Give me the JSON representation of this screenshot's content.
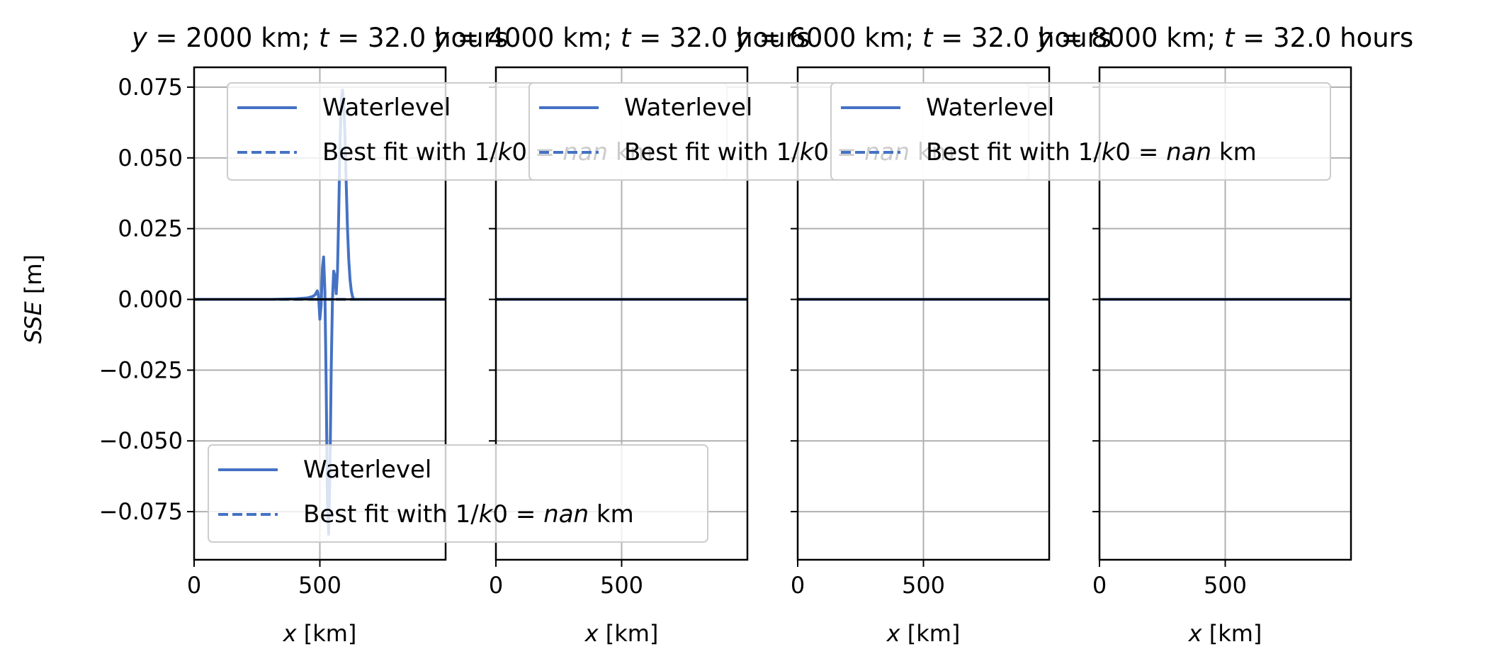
{
  "figure": {
    "ylabel_var": "SSE",
    "ylabel_unit": " [m]",
    "line_color": "#4472c4",
    "zero_line_color": "#000000",
    "grid_color": "#b0b0b0"
  },
  "chart_data": [
    {
      "type": "line",
      "title": {
        "lead": "y",
        "mid": " = 2000 km; ",
        "t": "t",
        "tail": " = 32.0 hours"
      },
      "xlabel": {
        "var": "x",
        "unit": " [km]"
      },
      "xlim": [
        0,
        1000
      ],
      "ylim": [
        -0.092,
        0.082
      ],
      "xticks": [
        0,
        500
      ],
      "yticks": [
        0.075,
        0.05,
        0.025,
        0.0,
        -0.025,
        -0.05,
        -0.075
      ],
      "ytick_labels": [
        "0.075",
        "0.050",
        "0.025",
        "0.000",
        "−0.025",
        "−0.050",
        "−0.075"
      ],
      "xtick_labels": [
        "0",
        "500"
      ],
      "show_yticklabels": true,
      "grid": true,
      "series": [
        {
          "name": "Waterlevel",
          "style": "solid",
          "x": [
            0,
            300,
            400,
            450,
            470,
            480,
            490,
            495,
            500,
            505,
            510,
            515,
            520,
            525,
            530,
            535,
            540,
            545,
            550,
            555,
            560,
            565,
            570,
            575,
            580,
            585,
            590,
            595,
            600,
            605,
            610,
            615,
            620,
            625,
            630,
            635,
            640,
            645,
            650,
            660,
            680,
            700,
            750,
            1000
          ],
          "y": [
            0.0,
            0.0,
            0.0002,
            0.0005,
            0.001,
            0.0015,
            0.003,
            0.001,
            -0.007,
            -0.002,
            0.011,
            0.015,
            0.003,
            -0.03,
            -0.07,
            -0.083,
            -0.062,
            -0.025,
            0.0,
            0.01,
            0.008,
            0.002,
            0.01,
            0.03,
            0.055,
            0.07,
            0.074,
            0.07,
            0.057,
            0.04,
            0.025,
            0.014,
            0.007,
            0.003,
            0.001,
            0.0,
            0.0,
            0.0,
            0.0,
            0.0,
            0.0,
            0.0,
            0.0,
            0.0
          ]
        },
        {
          "name": "Best fit with 1/k0 = nan km",
          "style": "dashed",
          "x": [
            0,
            1000
          ],
          "y": [
            0.0,
            0.0
          ]
        }
      ],
      "legends": [
        {
          "placement": "upper-center",
          "entries": [
            {
              "label": "Waterlevel",
              "style": "solid"
            },
            {
              "label_pre": "Best fit with 1/",
              "label_k": "k",
              "label_mid": "0 = ",
              "label_nan": "nan",
              "label_post": " km",
              "style": "dashed"
            }
          ]
        },
        {
          "placement": "lower-left",
          "entries": [
            {
              "label": "Waterlevel",
              "style": "solid"
            },
            {
              "label_pre": "Best fit with 1/",
              "label_k": "k",
              "label_mid": "0 = ",
              "label_nan": "nan",
              "label_post": " km",
              "style": "dashed"
            }
          ]
        }
      ]
    },
    {
      "type": "line",
      "title": {
        "lead": "y",
        "mid": " = 4000 km; ",
        "t": "t",
        "tail": " = 32.0 hours"
      },
      "xlabel": {
        "var": "x",
        "unit": " [km]"
      },
      "xlim": [
        0,
        1000
      ],
      "ylim": [
        -0.092,
        0.082
      ],
      "xticks": [
        0,
        500
      ],
      "yticks": [
        0.075,
        0.05,
        0.025,
        0.0,
        -0.025,
        -0.05,
        -0.075
      ],
      "xtick_labels": [
        "0",
        "500"
      ],
      "show_yticklabels": false,
      "grid": true,
      "series": [
        {
          "name": "Waterlevel",
          "style": "solid",
          "x": [
            0,
            1000
          ],
          "y": [
            0.0,
            0.0
          ]
        },
        {
          "name": "Best fit with 1/k0 = nan km",
          "style": "dashed",
          "x": [
            0,
            1000
          ],
          "y": [
            0.0,
            0.0
          ]
        }
      ],
      "legends": [
        {
          "placement": "upper-center",
          "entries": [
            {
              "label": "Waterlevel",
              "style": "solid"
            },
            {
              "label_pre": "Best fit with 1/",
              "label_k": "k",
              "label_mid": "0 = ",
              "label_nan": "nan",
              "label_post": " km",
              "style": "dashed"
            }
          ]
        }
      ]
    },
    {
      "type": "line",
      "title": {
        "lead": "y",
        "mid": " = 6000 km; ",
        "t": "t",
        "tail": " = 32.0 hours"
      },
      "xlabel": {
        "var": "x",
        "unit": " [km]"
      },
      "xlim": [
        0,
        1000
      ],
      "ylim": [
        -0.092,
        0.082
      ],
      "xticks": [
        0,
        500
      ],
      "yticks": [
        0.075,
        0.05,
        0.025,
        0.0,
        -0.025,
        -0.05,
        -0.075
      ],
      "xtick_labels": [
        "0",
        "500"
      ],
      "show_yticklabels": false,
      "grid": true,
      "series": [
        {
          "name": "Waterlevel",
          "style": "solid",
          "x": [
            0,
            1000
          ],
          "y": [
            0.0,
            0.0
          ]
        },
        {
          "name": "Best fit with 1/k0 = nan km",
          "style": "dashed",
          "x": [
            0,
            1000
          ],
          "y": [
            0.0,
            0.0
          ]
        }
      ],
      "legends": [
        {
          "placement": "upper-center",
          "entries": [
            {
              "label": "Waterlevel",
              "style": "solid"
            },
            {
              "label_pre": "Best fit with 1/",
              "label_k": "k",
              "label_mid": "0 = ",
              "label_nan": "nan",
              "label_post": " km",
              "style": "dashed"
            }
          ]
        }
      ]
    },
    {
      "type": "line",
      "title": {
        "lead": "y",
        "mid": " = 8000 km; ",
        "t": "t",
        "tail": " = 32.0 hours"
      },
      "xlabel": {
        "var": "x",
        "unit": " [km]"
      },
      "xlim": [
        0,
        1000
      ],
      "ylim": [
        -0.092,
        0.082
      ],
      "xticks": [
        0,
        500
      ],
      "yticks": [
        0.075,
        0.05,
        0.025,
        0.0,
        -0.025,
        -0.05,
        -0.075
      ],
      "xtick_labels": [
        "0",
        "500"
      ],
      "show_yticklabels": false,
      "grid": true,
      "series": [
        {
          "name": "Waterlevel",
          "style": "solid",
          "x": [
            0,
            1000
          ],
          "y": [
            0.0,
            0.0
          ]
        }
      ],
      "legends": []
    }
  ]
}
